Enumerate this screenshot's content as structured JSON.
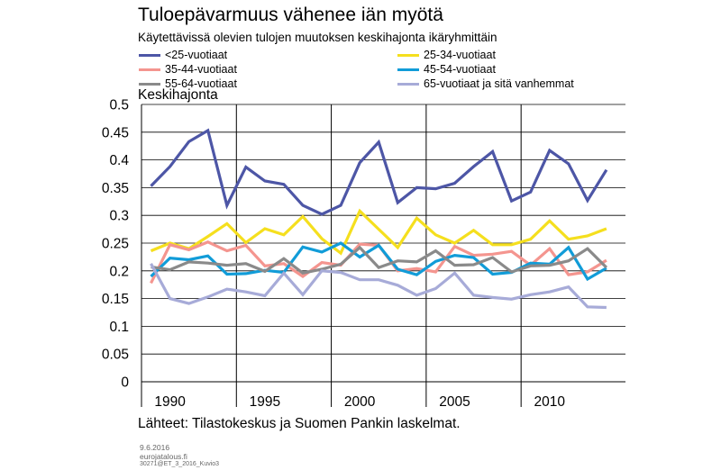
{
  "title": "Tuloepävarmuus vähenee iän myötä",
  "subtitle": "Käytettävissä olevien tulojen muutoksen keskihajonta ikäryhmittäin",
  "source": "Lähteet: Tilastokeskus ja Suomen Pankin laskelmat.",
  "footer": {
    "date": "9.6.2016",
    "site": "eurojatalous.fi",
    "code": "30271@ET_3_2016_Kuvio3"
  },
  "chart_data": {
    "type": "line",
    "ylabel": "Keskihajonta",
    "ylim": [
      0,
      0.5
    ],
    "yticks": [
      0,
      0.05,
      0.1,
      0.15,
      0.2,
      0.25,
      0.3,
      0.35,
      0.4,
      0.45,
      0.5
    ],
    "ytick_labels": [
      "0",
      "0.05",
      "0.1",
      "0.15",
      "0.2",
      "0.25",
      "0.3",
      "0.35",
      "0.4",
      "0.45",
      "0.5"
    ],
    "xlim": [
      1988.5,
      2014
    ],
    "xtick_labels": [
      "1990",
      "1995",
      "2000",
      "2005",
      "2010"
    ],
    "xticks": [
      1990,
      1995,
      2000,
      2005,
      2010
    ],
    "x_separators": [
      1993.5,
      1998.5,
      2003.5,
      2008.5
    ],
    "x": [
      1989,
      1990,
      1991,
      1992,
      1993,
      1994,
      1995,
      1996,
      1997,
      1998,
      1999,
      2000,
      2001,
      2002,
      2003,
      2004,
      2005,
      2006,
      2007,
      2008,
      2009,
      2010,
      2011,
      2012,
      2013
    ],
    "legend_placement": "top",
    "series": [
      {
        "name": "<25-vuotiaat",
        "color": "#4d56a6",
        "values": [
          0.353,
          0.388,
          0.433,
          0.453,
          0.318,
          0.387,
          0.362,
          0.356,
          0.318,
          0.302,
          0.318,
          0.395,
          0.432,
          0.323,
          0.35,
          0.348,
          0.358,
          0.388,
          0.415,
          0.326,
          0.342,
          0.417,
          0.393,
          0.327,
          0.382
        ]
      },
      {
        "name": "25-34-vuotiaat",
        "color": "#f5df1e",
        "values": [
          0.236,
          0.25,
          0.24,
          0.262,
          0.285,
          0.251,
          0.276,
          0.265,
          0.298,
          0.258,
          0.232,
          0.308,
          0.275,
          0.242,
          0.295,
          0.265,
          0.25,
          0.273,
          0.247,
          0.247,
          0.257,
          0.29,
          0.257,
          0.263,
          0.276
        ]
      },
      {
        "name": "35-44-vuotiaat",
        "color": "#f4958f",
        "values": [
          0.178,
          0.247,
          0.238,
          0.252,
          0.236,
          0.246,
          0.209,
          0.213,
          0.19,
          0.215,
          0.21,
          0.248,
          0.246,
          0.2,
          0.204,
          0.198,
          0.244,
          0.228,
          0.23,
          0.235,
          0.21,
          0.24,
          0.193,
          0.198,
          0.219
        ]
      },
      {
        "name": "45-54-vuotiaat",
        "color": "#119cd8",
        "values": [
          0.19,
          0.223,
          0.22,
          0.227,
          0.194,
          0.195,
          0.201,
          0.197,
          0.243,
          0.234,
          0.25,
          0.225,
          0.246,
          0.203,
          0.193,
          0.217,
          0.228,
          0.224,
          0.194,
          0.197,
          0.214,
          0.212,
          0.242,
          0.185,
          0.205
        ]
      },
      {
        "name": "55-64-vuotiaat",
        "color": "#8a8a8a",
        "values": [
          0.207,
          0.202,
          0.216,
          0.214,
          0.21,
          0.213,
          0.199,
          0.222,
          0.196,
          0.203,
          0.212,
          0.242,
          0.206,
          0.218,
          0.216,
          0.236,
          0.21,
          0.211,
          0.224,
          0.198,
          0.209,
          0.21,
          0.218,
          0.24,
          0.206
        ]
      },
      {
        "name": "65-vuotiaat ja sitä vanhemmat",
        "color": "#a7abd8",
        "values": [
          0.213,
          0.15,
          0.141,
          0.153,
          0.167,
          0.162,
          0.155,
          0.196,
          0.157,
          0.2,
          0.197,
          0.184,
          0.184,
          0.174,
          0.156,
          0.168,
          0.196,
          0.156,
          0.152,
          0.149,
          0.157,
          0.162,
          0.171,
          0.135,
          0.134
        ]
      }
    ]
  }
}
